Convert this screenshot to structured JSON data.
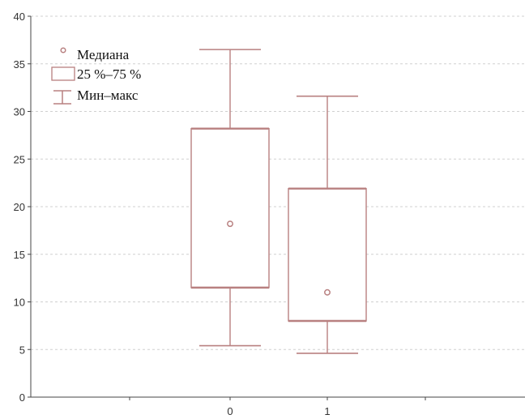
{
  "chart_data": {
    "type": "boxplot",
    "title": "",
    "xlabel": "",
    "ylabel": "",
    "categories": [
      "0",
      "1"
    ],
    "ylim": [
      0,
      40
    ],
    "yticks": [
      0,
      5,
      10,
      15,
      20,
      25,
      30,
      35,
      40
    ],
    "grid": "horizontal-dashed",
    "boxes": [
      {
        "category": "0",
        "min": 5.4,
        "q1": 11.5,
        "median": 18.2,
        "q3": 28.2,
        "max": 36.5
      },
      {
        "category": "1",
        "min": 4.6,
        "q1": 8.0,
        "median": 11.0,
        "q3": 21.9,
        "max": 31.6
      }
    ],
    "legend": {
      "position": "top-left",
      "items": [
        {
          "key": "median",
          "label": "Медиана"
        },
        {
          "key": "box",
          "label": "25 %–75 %"
        },
        {
          "key": "whisker",
          "label": "Мин–макс"
        }
      ]
    },
    "colors": {
      "mark": "#b88080",
      "grid": "#d0d0d0",
      "axis": "#444444"
    }
  }
}
